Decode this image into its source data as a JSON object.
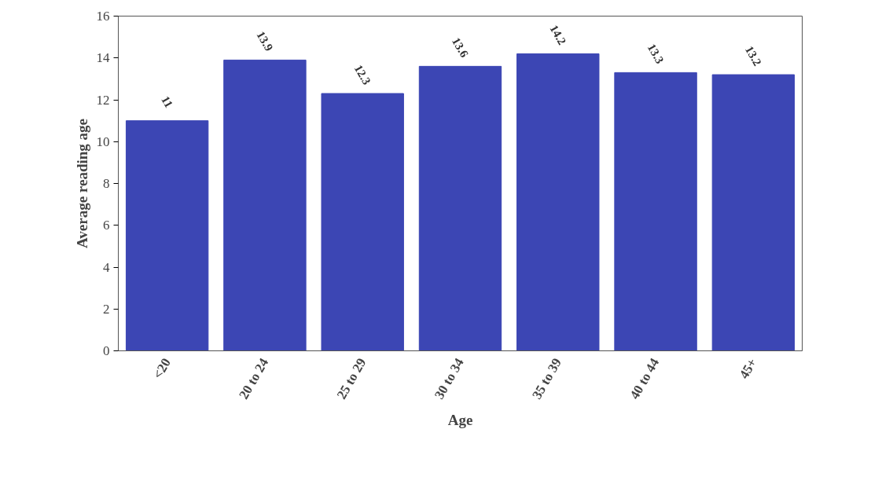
{
  "chart_data": {
    "type": "bar",
    "xlabel": "Age",
    "ylabel": "Average reading age",
    "categories": [
      "<20",
      "20 to 24",
      "25 to 29",
      "30 to 34",
      "35 to 39",
      "40 to 44",
      "45+"
    ],
    "values": [
      11,
      13.9,
      12.3,
      13.6,
      14.2,
      13.3,
      13.2
    ],
    "color": "#3c46b4",
    "ylim": [
      0,
      16
    ],
    "yticks": [
      0,
      2,
      4,
      6,
      8,
      10,
      12,
      14,
      16
    ],
    "grid": false,
    "data_labels": true
  }
}
